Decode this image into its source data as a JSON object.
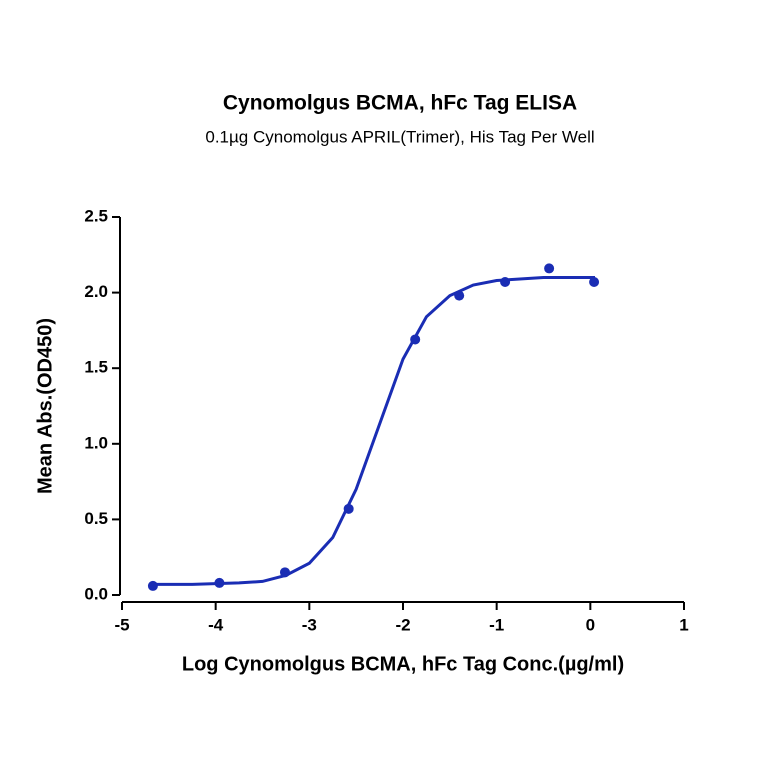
{
  "chart_data": {
    "type": "scatter",
    "title": "Cynomolgus BCMA, hFc Tag ELISA",
    "subtitle": "0.1µg Cynomolgus APRIL(Trimer), His Tag Per Well",
    "x_label": "Log Cynomolgus BCMA, hFc Tag Conc.(µg/ml)",
    "y_label": "Mean Abs.(OD450)",
    "xlim": [
      -5,
      1
    ],
    "xticks": [
      -5,
      -4,
      -3,
      -2,
      -1,
      0,
      1
    ],
    "ylim": [
      0,
      2.5
    ],
    "yticks": [
      {
        "value": 0,
        "label": "0.0"
      },
      {
        "value": 0.5,
        "label": "0.5"
      },
      {
        "value": 1,
        "label": "1.0"
      },
      {
        "value": 1.5,
        "label": "1.5"
      },
      {
        "value": 2,
        "label": "2.0"
      },
      {
        "value": 2.5,
        "label": "2.5"
      }
    ],
    "color": "#1a2db4",
    "x": [
      -4.67,
      -3.96,
      -3.26,
      -2.58,
      -1.87,
      -1.4,
      -0.91,
      -0.44,
      0.04
    ],
    "values": [
      0.06,
      0.08,
      0.15,
      0.57,
      1.69,
      1.98,
      2.07,
      2.16,
      2.07
    ],
    "fit": {
      "x": [
        -4.7,
        -4.25,
        -3.75,
        -3.5,
        -3.25,
        -3.0,
        -2.75,
        -2.5,
        -2.25,
        -2.0,
        -1.75,
        -1.5,
        -1.25,
        -1.0,
        -0.5,
        0.05
      ],
      "values": [
        0.07,
        0.07,
        0.08,
        0.09,
        0.13,
        0.21,
        0.38,
        0.7,
        1.13,
        1.56,
        1.84,
        1.98,
        2.05,
        2.08,
        2.1,
        2.1
      ]
    }
  }
}
